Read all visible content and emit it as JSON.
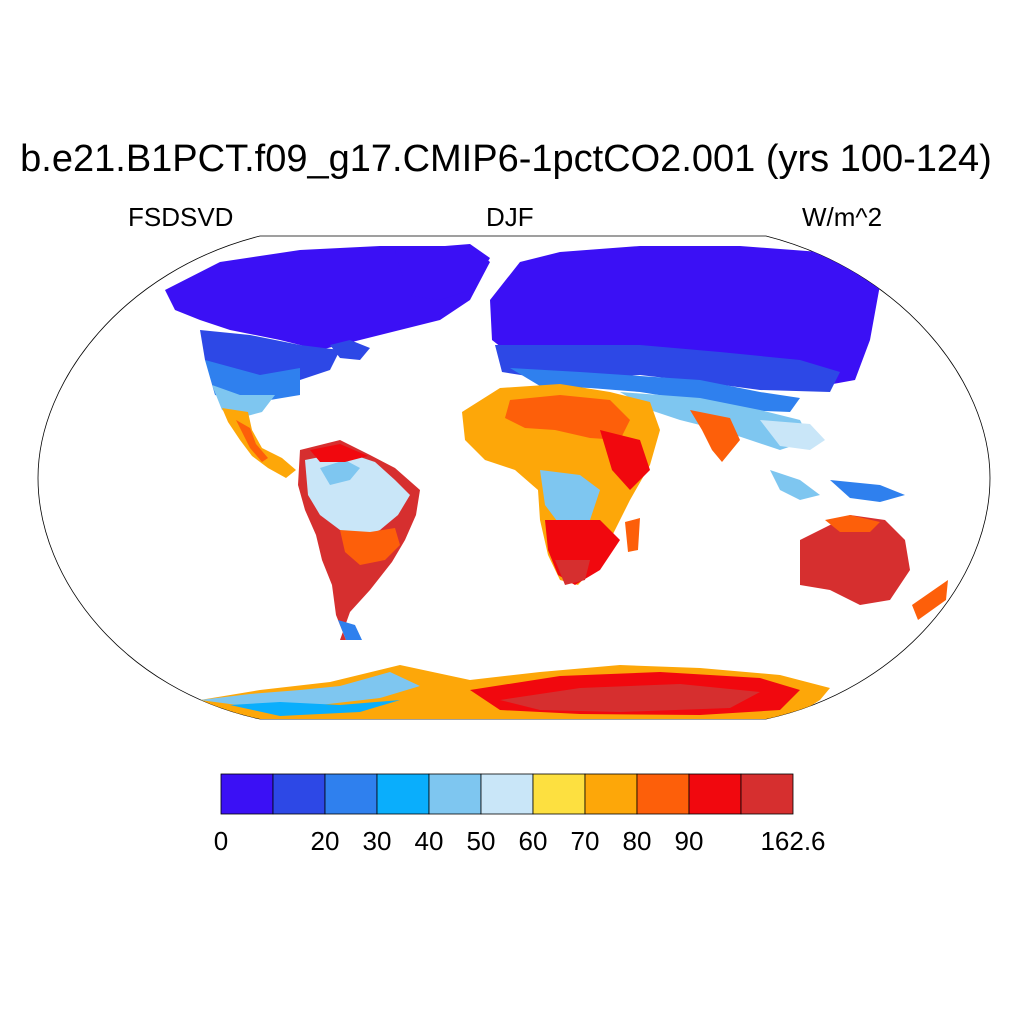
{
  "title": "b.e21.B1PCT.f09_g17.CMIP6-1pctCO2.001 (yrs 100-124)",
  "variable": "FSDSVD",
  "season": "DJF",
  "units": "W/m^2",
  "colorbar": {
    "colors": [
      "#3b10f5",
      "#2d48e6",
      "#2f80ee",
      "#0aaefc",
      "#7ec6f0",
      "#c9e6f8",
      "#fde040",
      "#fda709",
      "#fd5f0a",
      "#f1080e",
      "#d62f2f"
    ],
    "tick_labels": [
      "0",
      "",
      "20",
      "30",
      "40",
      "50",
      "60",
      "70",
      "80",
      "90",
      "",
      "162.6"
    ]
  },
  "palette": {
    "low": "#3b10f5",
    "mid_low": "#2f80ee",
    "cyan": "#0aaefc",
    "light": "#c9e6f8",
    "yellow": "#fde040",
    "orange": "#fda709",
    "dark_orange": "#fd5f0a",
    "red": "#f1080e",
    "dark_red": "#d62f2f"
  }
}
